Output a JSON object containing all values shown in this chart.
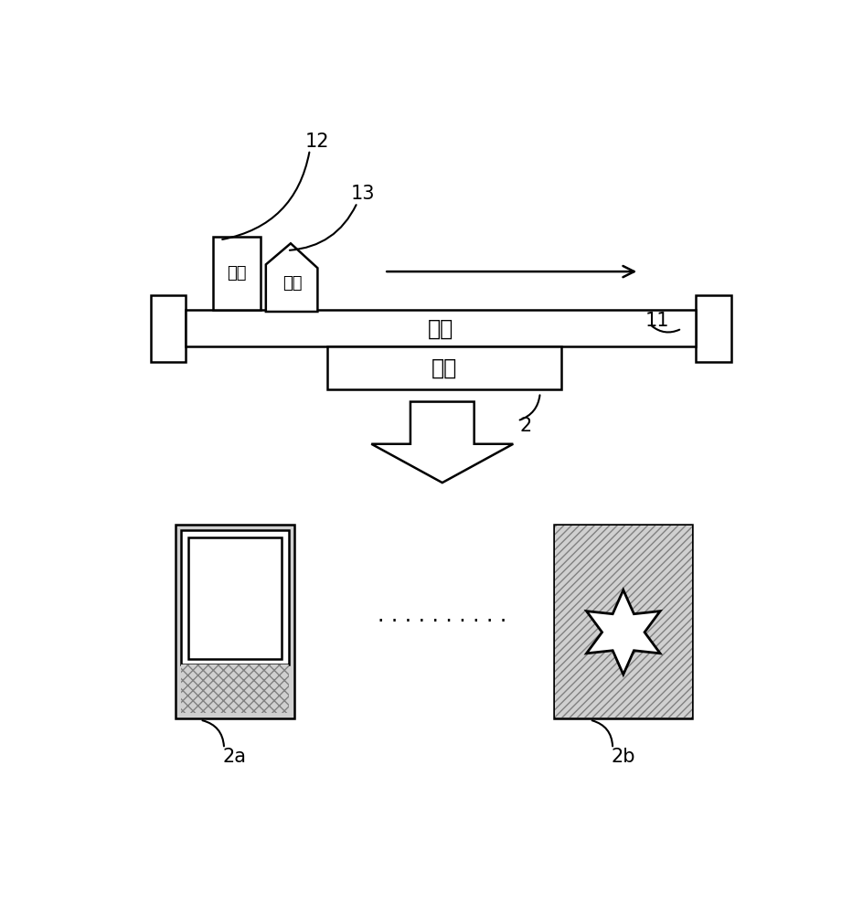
{
  "bg_color": "#ffffff",
  "label_12": "12",
  "label_13": "13",
  "label_11": "11",
  "label_2": "2",
  "label_2a": "2a",
  "label_2b": "2b",
  "text_guaban": "刷板",
  "text_youmo": "油默",
  "text_wangban": "网版",
  "text_gongjian": "工件",
  "dots": "· · · · · · · · · ·",
  "gray_light": "#d0d0d0",
  "gray_hatch": "#c0c0c0",
  "lw": 1.8,
  "fontsize_label": 15,
  "fontsize_text": 17,
  "arrow_color": "#000000"
}
